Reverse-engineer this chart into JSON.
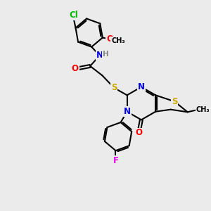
{
  "bg_color": "#ebebeb",
  "bond_color": "#000000",
  "bond_width": 1.5,
  "atom_colors": {
    "N": "#0000ee",
    "O": "#ff0000",
    "S": "#ccaa00",
    "Cl": "#00bb00",
    "F": "#ee00ee",
    "H": "#888888",
    "C": "#000000"
  },
  "font_size": 8.5
}
